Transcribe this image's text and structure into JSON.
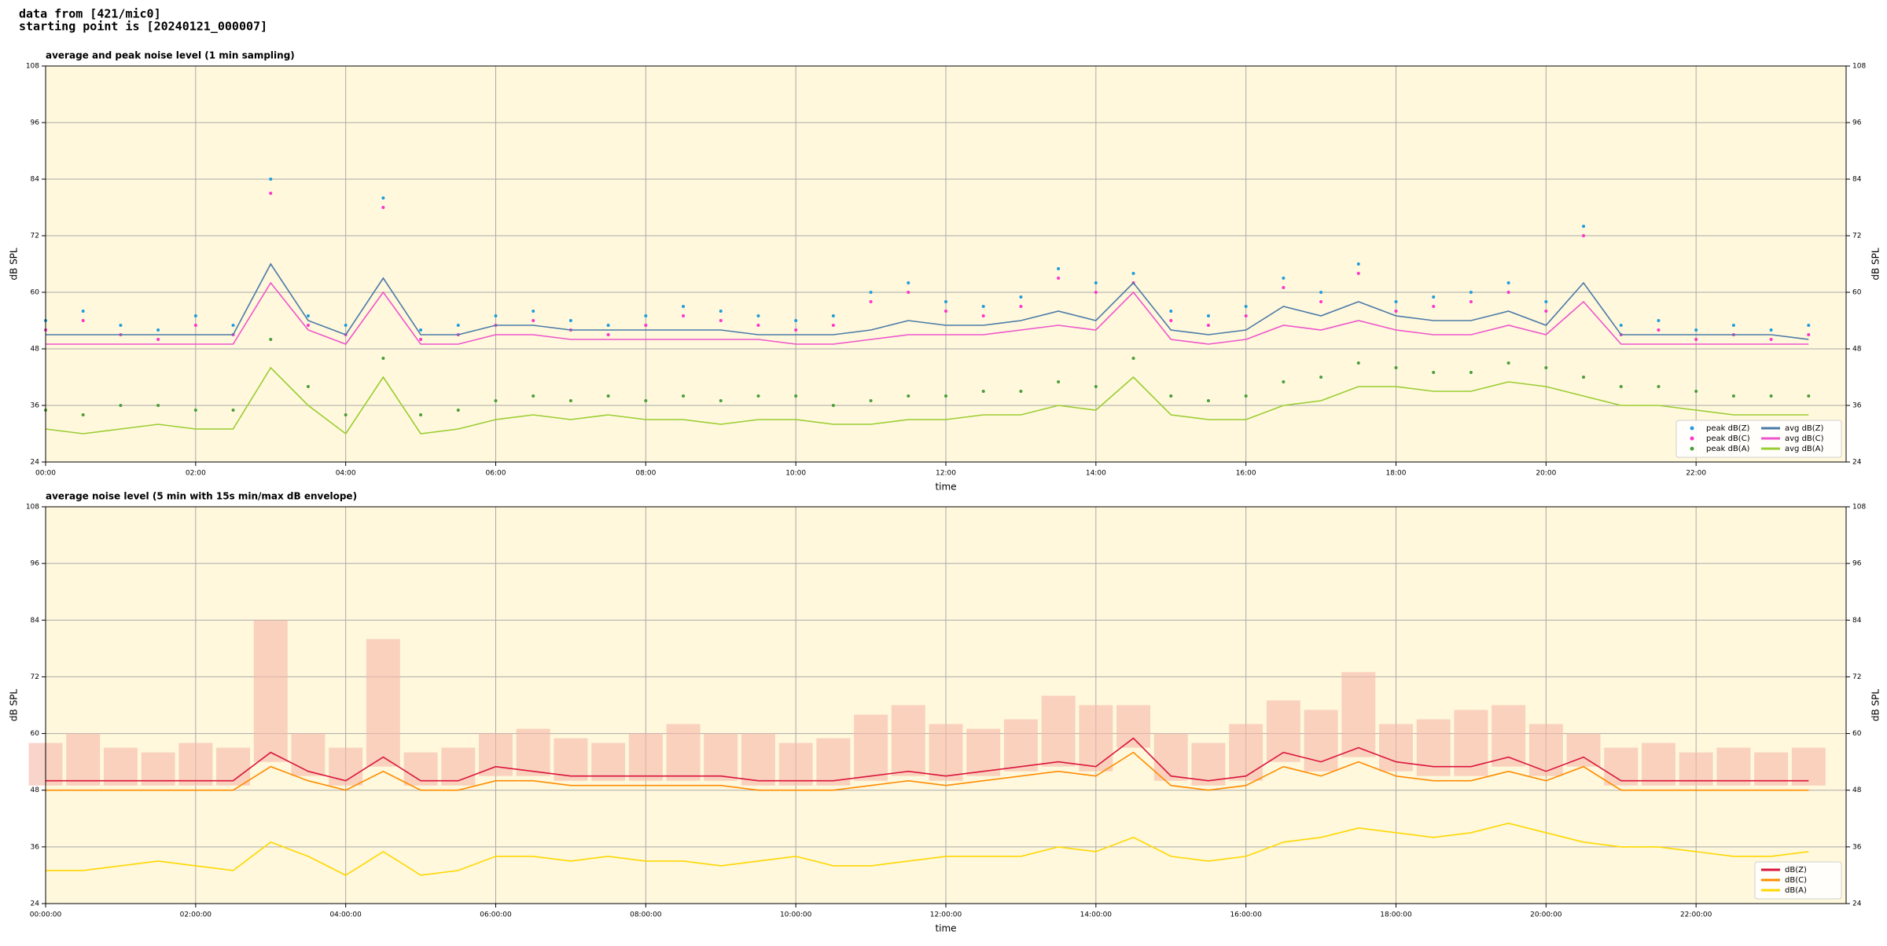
{
  "header": {
    "line1": "data from [421/mic0]",
    "line2": "starting point is [20240121_000007]"
  },
  "chart_data": [
    {
      "type": "line",
      "title": "average and peak noise level (1 min sampling)",
      "xlabel": "time",
      "ylabel": "dB SPL",
      "xlim": [
        0,
        24
      ],
      "ylim": [
        24,
        108
      ],
      "yticks": [
        24,
        36,
        48,
        60,
        72,
        84,
        96,
        108
      ],
      "xticks": [
        {
          "value": 0,
          "label": "00:00"
        },
        {
          "value": 2,
          "label": "02:00"
        },
        {
          "value": 4,
          "label": "04:00"
        },
        {
          "value": 6,
          "label": "06:00"
        },
        {
          "value": 8,
          "label": "08:00"
        },
        {
          "value": 10,
          "label": "10:00"
        },
        {
          "value": 12,
          "label": "12:00"
        },
        {
          "value": 14,
          "label": "14:00"
        },
        {
          "value": 16,
          "label": "16:00"
        },
        {
          "value": 18,
          "label": "18:00"
        },
        {
          "value": 20,
          "label": "20:00"
        },
        {
          "value": 22,
          "label": "22:00"
        }
      ],
      "grid": true,
      "legend": "lower right",
      "legend_columns": 2,
      "background": "#fff8dc",
      "x": [
        0,
        0.5,
        1,
        1.5,
        2,
        2.5,
        3,
        3.5,
        4,
        4.5,
        5,
        5.5,
        6,
        6.5,
        7,
        7.5,
        8,
        8.5,
        9,
        9.5,
        10,
        10.5,
        11,
        11.5,
        12,
        12.5,
        13,
        13.5,
        14,
        14.5,
        15,
        15.5,
        16,
        16.5,
        17,
        17.5,
        18,
        18.5,
        19,
        19.5,
        20,
        20.5,
        21,
        21.5,
        22,
        22.5,
        23,
        23.5
      ],
      "series": [
        {
          "name": "peak dB(Z)",
          "kind": "scatter",
          "color": "#1f9ddb",
          "values": [
            54,
            56,
            53,
            52,
            55,
            53,
            84,
            55,
            53,
            80,
            52,
            53,
            55,
            56,
            54,
            53,
            55,
            57,
            56,
            55,
            54,
            55,
            60,
            62,
            58,
            57,
            59,
            65,
            62,
            64,
            56,
            55,
            57,
            63,
            60,
            66,
            58,
            59,
            60,
            62,
            58,
            74,
            53,
            54,
            52,
            53,
            52,
            53
          ]
        },
        {
          "name": "peak dB(C)",
          "kind": "scatter",
          "color": "#ff33cc",
          "values": [
            52,
            54,
            51,
            50,
            53,
            51,
            81,
            53,
            51,
            78,
            50,
            51,
            53,
            54,
            52,
            51,
            53,
            55,
            54,
            53,
            52,
            53,
            58,
            60,
            56,
            55,
            57,
            63,
            60,
            62,
            54,
            53,
            55,
            61,
            58,
            64,
            56,
            57,
            58,
            60,
            56,
            72,
            51,
            52,
            50,
            51,
            50,
            51
          ]
        },
        {
          "name": "peak dB(A)",
          "kind": "scatter",
          "color": "#4a9e3a",
          "values": [
            35,
            34,
            36,
            36,
            35,
            35,
            50,
            40,
            34,
            46,
            34,
            35,
            37,
            38,
            37,
            38,
            37,
            38,
            37,
            38,
            38,
            36,
            37,
            38,
            38,
            39,
            39,
            41,
            40,
            46,
            38,
            37,
            38,
            41,
            42,
            45,
            44,
            43,
            43,
            45,
            44,
            42,
            40,
            40,
            39,
            38,
            38,
            38
          ]
        },
        {
          "name": "avg dB(Z)",
          "kind": "line",
          "color": "#4a7aa8",
          "values": [
            51,
            51,
            51,
            51,
            51,
            51,
            66,
            54,
            51,
            63,
            51,
            51,
            53,
            53,
            52,
            52,
            52,
            52,
            52,
            51,
            51,
            51,
            52,
            54,
            53,
            53,
            54,
            56,
            54,
            62,
            52,
            51,
            52,
            57,
            55,
            58,
            55,
            54,
            54,
            56,
            53,
            62,
            51,
            51,
            51,
            51,
            51,
            50
          ]
        },
        {
          "name": "avg dB(C)",
          "kind": "line",
          "color": "#ee55cc",
          "values": [
            49,
            49,
            49,
            49,
            49,
            49,
            62,
            52,
            49,
            60,
            49,
            49,
            51,
            51,
            50,
            50,
            50,
            50,
            50,
            50,
            49,
            49,
            50,
            51,
            51,
            51,
            52,
            53,
            52,
            60,
            50,
            49,
            50,
            53,
            52,
            54,
            52,
            51,
            51,
            53,
            51,
            58,
            49,
            49,
            49,
            49,
            49,
            49
          ]
        },
        {
          "name": "avg dB(A)",
          "kind": "line",
          "color": "#9acd32",
          "values": [
            31,
            30,
            31,
            32,
            31,
            31,
            44,
            36,
            30,
            42,
            30,
            31,
            33,
            34,
            33,
            34,
            33,
            33,
            32,
            33,
            33,
            32,
            32,
            33,
            33,
            34,
            34,
            36,
            35,
            42,
            34,
            33,
            33,
            36,
            37,
            40,
            40,
            39,
            39,
            41,
            40,
            38,
            36,
            36,
            35,
            34,
            34,
            34
          ]
        }
      ]
    },
    {
      "type": "line",
      "title": "average noise level (5 min with 15s min/max dB envelope)",
      "xlabel": "time",
      "ylabel": "dB SPL",
      "xlim": [
        0,
        24
      ],
      "ylim": [
        24,
        108
      ],
      "yticks": [
        24,
        36,
        48,
        60,
        72,
        84,
        96,
        108
      ],
      "xticks": [
        {
          "value": 0,
          "label": "00:00:00"
        },
        {
          "value": 2,
          "label": "02:00:00"
        },
        {
          "value": 4,
          "label": "04:00:00"
        },
        {
          "value": 6,
          "label": "06:00:00"
        },
        {
          "value": 8,
          "label": "08:00:00"
        },
        {
          "value": 10,
          "label": "10:00:00"
        },
        {
          "value": 12,
          "label": "12:00:00"
        },
        {
          "value": 14,
          "label": "14:00:00"
        },
        {
          "value": 16,
          "label": "16:00:00"
        },
        {
          "value": 18,
          "label": "18:00:00"
        },
        {
          "value": 20,
          "label": "20:00:00"
        },
        {
          "value": 22,
          "label": "22:00:00"
        }
      ],
      "grid": true,
      "legend": "lower right",
      "legend_columns": 1,
      "background": "#fff8dc",
      "x": [
        0,
        0.5,
        1,
        1.5,
        2,
        2.5,
        3,
        3.5,
        4,
        4.5,
        5,
        5.5,
        6,
        6.5,
        7,
        7.5,
        8,
        8.5,
        9,
        9.5,
        10,
        10.5,
        11,
        11.5,
        12,
        12.5,
        13,
        13.5,
        14,
        14.5,
        15,
        15.5,
        16,
        16.5,
        17,
        17.5,
        18,
        18.5,
        19,
        19.5,
        20,
        20.5,
        21,
        21.5,
        22,
        22.5,
        23,
        23.5
      ],
      "envelope": {
        "color": "#f5b7a8",
        "upper": [
          58,
          60,
          57,
          56,
          58,
          57,
          84,
          60,
          57,
          80,
          56,
          57,
          60,
          61,
          59,
          58,
          60,
          62,
          60,
          60,
          58,
          59,
          64,
          66,
          62,
          61,
          63,
          68,
          66,
          66,
          60,
          58,
          62,
          67,
          65,
          73,
          62,
          63,
          65,
          66,
          62,
          60,
          57,
          58,
          56,
          57,
          56,
          57
        ],
        "lower": [
          49,
          49,
          49,
          49,
          49,
          49,
          54,
          51,
          49,
          53,
          49,
          49,
          51,
          51,
          50,
          50,
          50,
          50,
          50,
          49,
          49,
          49,
          50,
          51,
          50,
          51,
          52,
          53,
          52,
          57,
          50,
          49,
          50,
          54,
          52,
          55,
          52,
          51,
          51,
          53,
          51,
          53,
          49,
          49,
          49,
          49,
          49,
          49
        ]
      },
      "series": [
        {
          "name": "dB(Z)",
          "kind": "line",
          "color": "#dc143c",
          "values": [
            50,
            50,
            50,
            50,
            50,
            50,
            56,
            52,
            50,
            55,
            50,
            50,
            53,
            52,
            51,
            51,
            51,
            51,
            51,
            50,
            50,
            50,
            51,
            52,
            51,
            52,
            53,
            54,
            53,
            59,
            51,
            50,
            51,
            56,
            54,
            57,
            54,
            53,
            53,
            55,
            52,
            55,
            50,
            50,
            50,
            50,
            50,
            50
          ]
        },
        {
          "name": "dB(C)",
          "kind": "line",
          "color": "#ff8c00",
          "values": [
            48,
            48,
            48,
            48,
            48,
            48,
            53,
            50,
            48,
            52,
            48,
            48,
            50,
            50,
            49,
            49,
            49,
            49,
            49,
            48,
            48,
            48,
            49,
            50,
            49,
            50,
            51,
            52,
            51,
            56,
            49,
            48,
            49,
            53,
            51,
            54,
            51,
            50,
            50,
            52,
            50,
            53,
            48,
            48,
            48,
            48,
            48,
            48
          ]
        },
        {
          "name": "dB(A)",
          "kind": "line",
          "color": "#ffd700",
          "values": [
            31,
            31,
            32,
            33,
            32,
            31,
            37,
            34,
            30,
            35,
            30,
            31,
            34,
            34,
            33,
            34,
            33,
            33,
            32,
            33,
            34,
            32,
            32,
            33,
            34,
            34,
            34,
            36,
            35,
            38,
            34,
            33,
            34,
            37,
            38,
            40,
            39,
            38,
            39,
            41,
            39,
            37,
            36,
            36,
            35,
            34,
            34,
            35
          ]
        }
      ]
    }
  ]
}
